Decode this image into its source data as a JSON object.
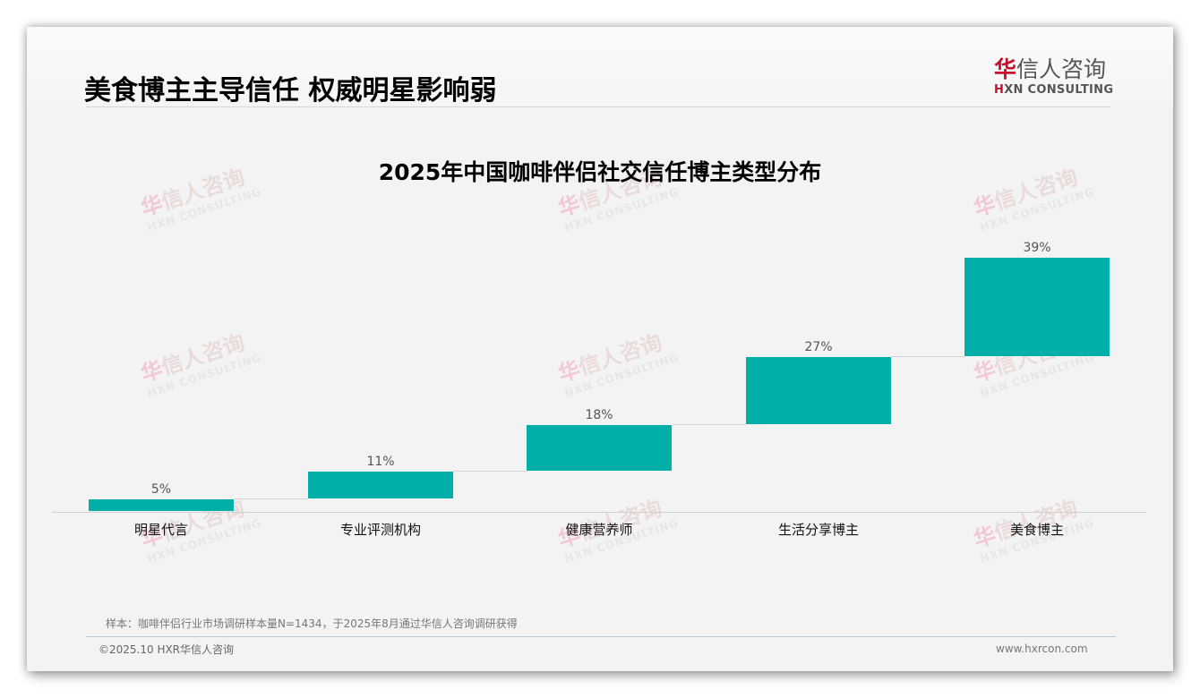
{
  "header": {
    "title": "美食博主主导信任 权威明星影响弱",
    "logo_cn_accent": "华",
    "logo_cn_rest": "信人咨询",
    "logo_en_mark": "H",
    "logo_en_rest": "XN CONSULTING"
  },
  "watermark": {
    "cn_accent": "华",
    "cn_rest": "信人咨询",
    "en": "HXN CONSULTING"
  },
  "colors": {
    "bar": "#00b0a8",
    "brand_red": "#c8102e",
    "background": "#f3f3f3"
  },
  "chart_data": {
    "type": "bar",
    "subtype": "waterfall",
    "title": "2025年中国咖啡伴侣社交信任博主类型分布",
    "categories": [
      "明星代言",
      "专业评测机构",
      "健康营养师",
      "生活分享博主",
      "美食博主"
    ],
    "values": [
      5,
      11,
      18,
      27,
      39
    ],
    "value_labels": [
      "5%",
      "11%",
      "18%",
      "27%",
      "39%"
    ],
    "xlabel": "",
    "ylabel": "",
    "unit": "%",
    "grid": false,
    "legend": "none",
    "ylim": [
      0,
      100
    ]
  },
  "footer": {
    "note": "样本：咖啡伴侣行业市场调研样本量N=1434，于2025年8月通过华信人咨询调研获得",
    "copyright": "©2025.10 HXR华信人咨询",
    "website": "www.hxrcon.com"
  }
}
